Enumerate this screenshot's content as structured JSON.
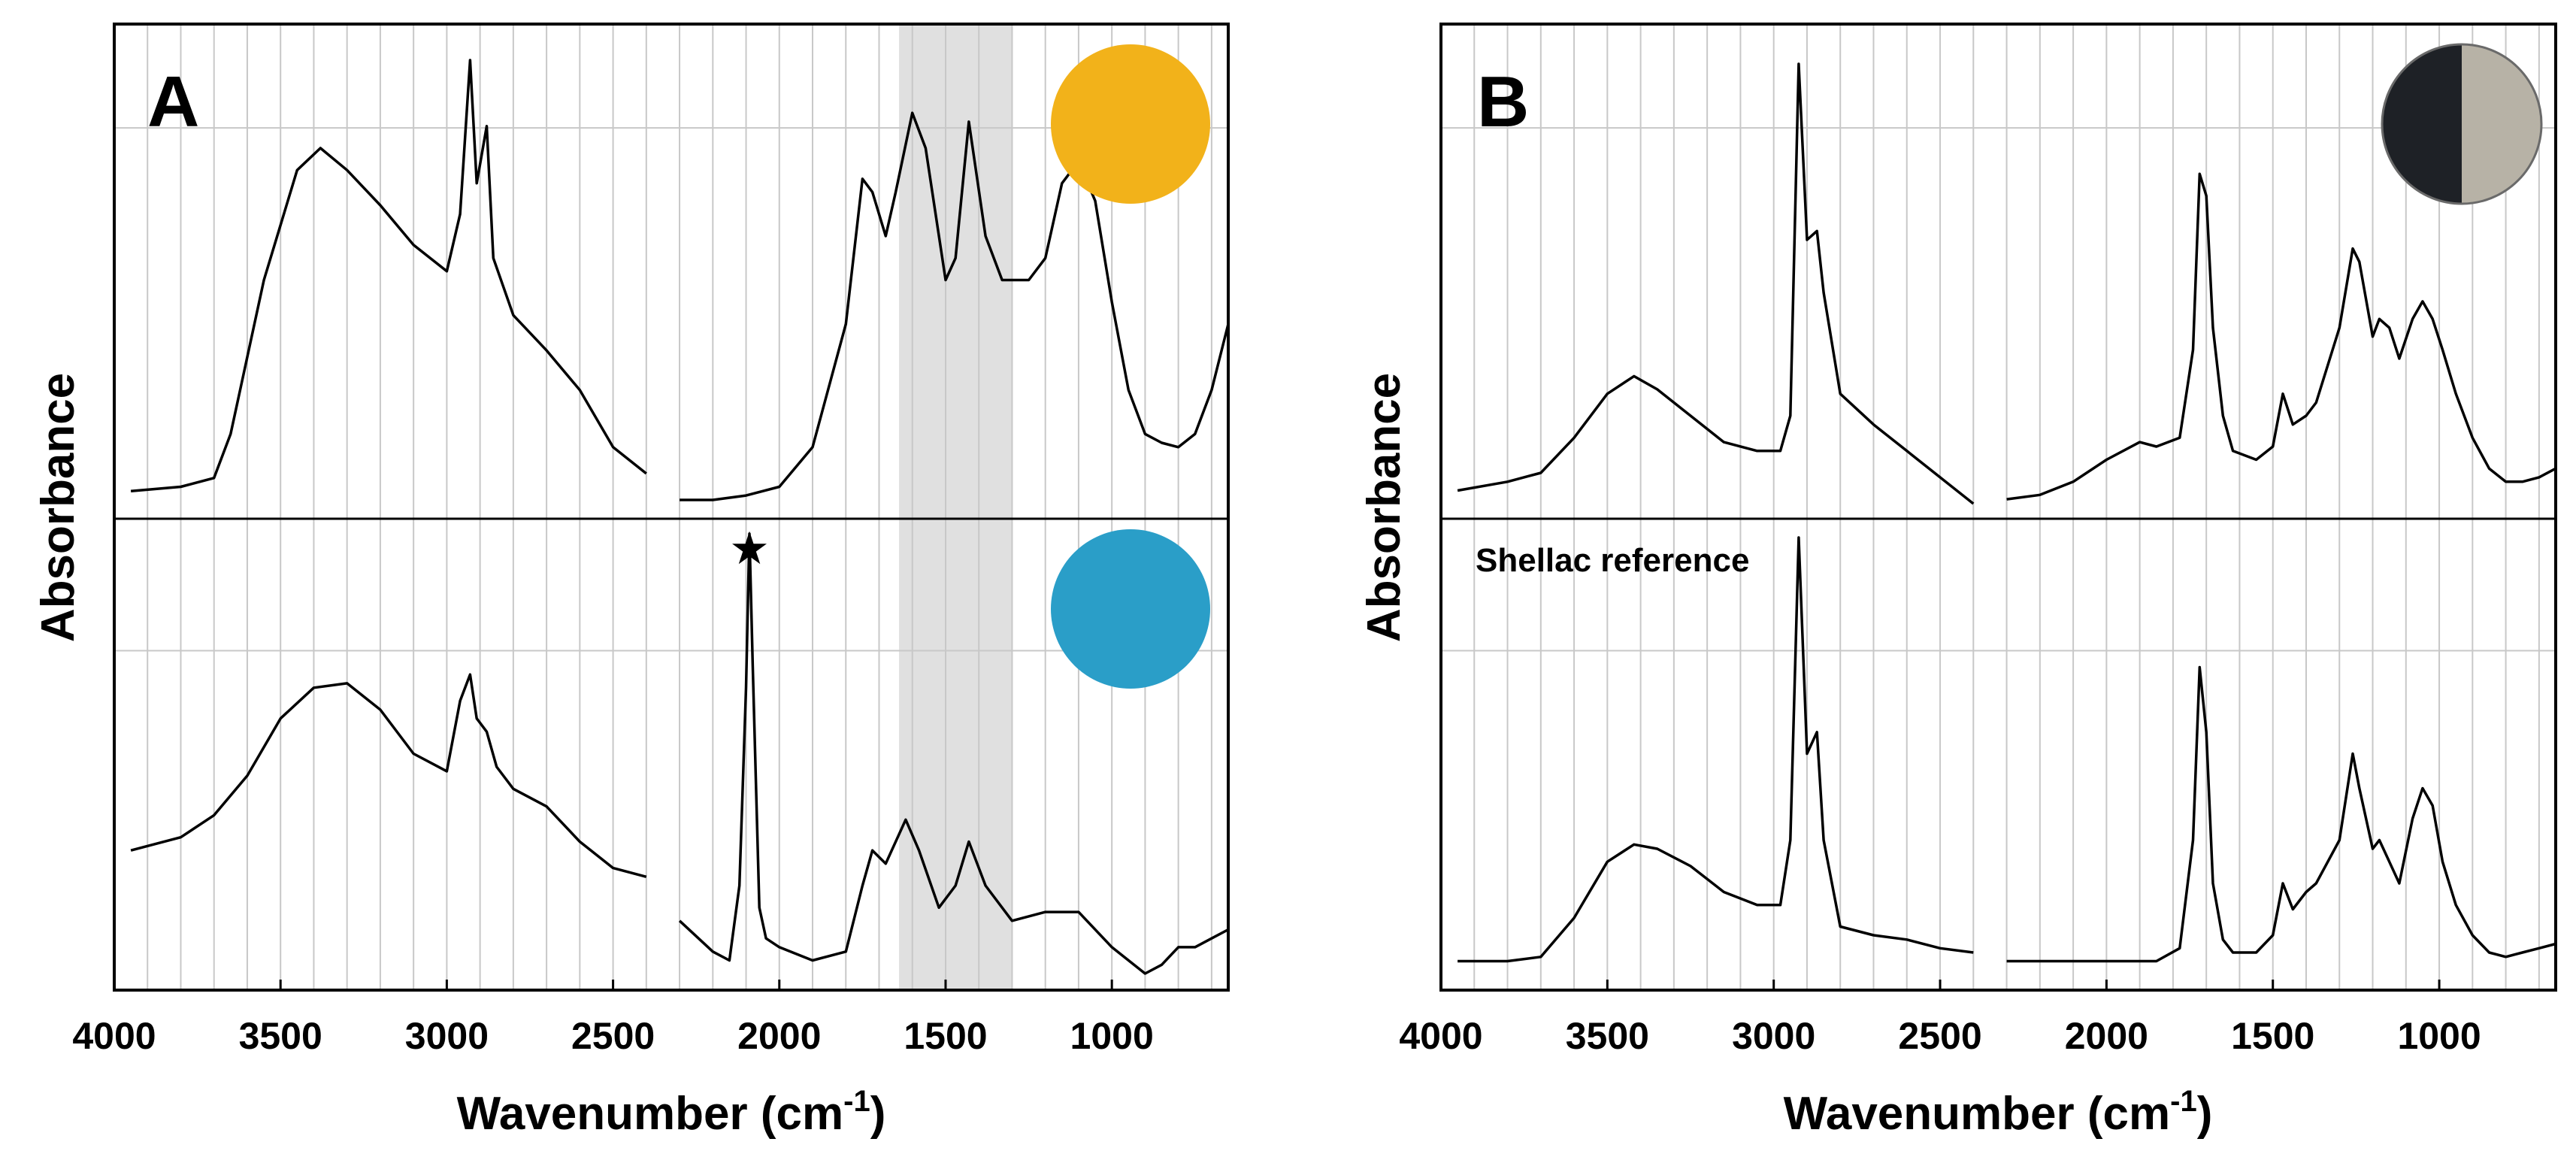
{
  "chart_data": [
    {
      "type": "line",
      "panel": "A",
      "xlabel": "Wavenumber (cm",
      "xlabel_sup": "-1",
      "xlabel_end": ")",
      "ylabel": "Absorbance",
      "xlim": [
        4000,
        650
      ],
      "xticks": [
        4000,
        3500,
        3000,
        2500,
        2000,
        1500,
        1000
      ],
      "gap": [
        2400,
        2300
      ],
      "highlight_band": [
        1640,
        1300
      ],
      "sample_colors": [
        "#f2b21a",
        "#2a9ec8"
      ],
      "marker": {
        "symbol": "★",
        "x": 2090
      },
      "series": [
        {
          "name": "yellow sample",
          "x": [
            3950,
            3800,
            3700,
            3650,
            3550,
            3450,
            3380,
            3300,
            3200,
            3100,
            3000,
            2960,
            2930,
            2910,
            2880,
            2860,
            2800,
            2700,
            2600,
            2500,
            2400,
            2300,
            2200,
            2100,
            2000,
            1900,
            1800,
            1750,
            1720,
            1680,
            1650,
            1600,
            1560,
            1500,
            1470,
            1430,
            1380,
            1330,
            1250,
            1200,
            1150,
            1100,
            1050,
            1000,
            950,
            900,
            850,
            800,
            750,
            700,
            650
          ],
          "y": [
            0.02,
            0.03,
            0.05,
            0.15,
            0.5,
            0.75,
            0.8,
            0.75,
            0.67,
            0.58,
            0.52,
            0.65,
            1.0,
            0.72,
            0.85,
            0.55,
            0.42,
            0.34,
            0.25,
            0.12,
            0.06,
            0.0,
            0.0,
            0.01,
            0.03,
            0.12,
            0.4,
            0.73,
            0.7,
            0.6,
            0.7,
            0.88,
            0.8,
            0.5,
            0.55,
            0.86,
            0.6,
            0.5,
            0.5,
            0.55,
            0.72,
            0.77,
            0.68,
            0.45,
            0.25,
            0.15,
            0.13,
            0.12,
            0.15,
            0.25,
            0.4
          ]
        },
        {
          "name": "blue sample",
          "x": [
            3950,
            3800,
            3700,
            3600,
            3500,
            3400,
            3300,
            3200,
            3100,
            3000,
            2960,
            2930,
            2910,
            2880,
            2850,
            2800,
            2700,
            2600,
            2500,
            2400,
            2300,
            2200,
            2150,
            2120,
            2100,
            2090,
            2080,
            2060,
            2040,
            2000,
            1900,
            1800,
            1750,
            1720,
            1680,
            1620,
            1580,
            1520,
            1470,
            1430,
            1380,
            1300,
            1200,
            1100,
            1000,
            900,
            850,
            800,
            750,
            700,
            650
          ],
          "y": [
            0.28,
            0.31,
            0.36,
            0.45,
            0.58,
            0.65,
            0.66,
            0.6,
            0.5,
            0.46,
            0.62,
            0.68,
            0.58,
            0.55,
            0.47,
            0.42,
            0.38,
            0.3,
            0.24,
            0.22,
            0.12,
            0.05,
            0.03,
            0.2,
            0.65,
            1.0,
            0.7,
            0.15,
            0.08,
            0.06,
            0.03,
            0.05,
            0.2,
            0.28,
            0.25,
            0.35,
            0.28,
            0.15,
            0.2,
            0.3,
            0.2,
            0.12,
            0.14,
            0.14,
            0.06,
            0.0,
            0.02,
            0.06,
            0.06,
            0.08,
            0.1
          ]
        }
      ]
    },
    {
      "type": "line",
      "panel": "B",
      "xlabel": "Wavenumber (cm",
      "xlabel_sup": "-1",
      "xlabel_end": ")",
      "ylabel": "Absorbance",
      "xlim": [
        4000,
        650
      ],
      "xticks": [
        4000,
        3500,
        3000,
        2500,
        2000,
        1500,
        1000
      ],
      "gap": [
        2400,
        2300
      ],
      "reference_label": "Shellac reference",
      "sample_colors": [
        "#1e2126",
        "#b7b2a6"
      ],
      "series": [
        {
          "name": "black sample",
          "x": [
            3950,
            3800,
            3700,
            3600,
            3500,
            3420,
            3350,
            3250,
            3150,
            3050,
            2980,
            2950,
            2925,
            2900,
            2870,
            2850,
            2800,
            2700,
            2600,
            2500,
            2400,
            2300,
            2200,
            2100,
            2000,
            1900,
            1850,
            1780,
            1740,
            1720,
            1700,
            1680,
            1650,
            1620,
            1550,
            1500,
            1470,
            1440,
            1400,
            1370,
            1300,
            1260,
            1240,
            1200,
            1180,
            1150,
            1120,
            1080,
            1050,
            1020,
            990,
            950,
            900,
            850,
            800,
            750,
            700,
            650
          ],
          "y": [
            0.03,
            0.05,
            0.07,
            0.15,
            0.25,
            0.29,
            0.26,
            0.2,
            0.14,
            0.12,
            0.12,
            0.2,
            1.0,
            0.6,
            0.62,
            0.48,
            0.25,
            0.18,
            0.12,
            0.06,
            0.0,
            0.01,
            0.02,
            0.05,
            0.1,
            0.14,
            0.13,
            0.15,
            0.35,
            0.75,
            0.7,
            0.4,
            0.2,
            0.12,
            0.1,
            0.13,
            0.25,
            0.18,
            0.2,
            0.23,
            0.4,
            0.58,
            0.55,
            0.38,
            0.42,
            0.4,
            0.33,
            0.42,
            0.46,
            0.42,
            0.35,
            0.25,
            0.15,
            0.08,
            0.05,
            0.05,
            0.06,
            0.08
          ]
        },
        {
          "name": "Shellac reference",
          "x": [
            3950,
            3800,
            3700,
            3600,
            3500,
            3420,
            3350,
            3250,
            3150,
            3050,
            2980,
            2950,
            2925,
            2900,
            2870,
            2850,
            2800,
            2700,
            2600,
            2500,
            2400,
            2300,
            2200,
            2100,
            2000,
            1900,
            1850,
            1780,
            1740,
            1720,
            1700,
            1680,
            1650,
            1620,
            1550,
            1500,
            1470,
            1440,
            1400,
            1370,
            1300,
            1260,
            1240,
            1200,
            1180,
            1150,
            1120,
            1080,
            1050,
            1020,
            990,
            950,
            900,
            850,
            800,
            750,
            700,
            650
          ],
          "y": [
            0.02,
            0.02,
            0.03,
            0.12,
            0.25,
            0.29,
            0.28,
            0.24,
            0.18,
            0.15,
            0.15,
            0.3,
            1.0,
            0.5,
            0.55,
            0.3,
            0.1,
            0.08,
            0.07,
            0.05,
            0.04,
            0.02,
            0.02,
            0.02,
            0.02,
            0.02,
            0.02,
            0.05,
            0.3,
            0.7,
            0.55,
            0.2,
            0.07,
            0.04,
            0.04,
            0.08,
            0.2,
            0.14,
            0.18,
            0.2,
            0.3,
            0.5,
            0.42,
            0.28,
            0.3,
            0.25,
            0.2,
            0.35,
            0.42,
            0.38,
            0.25,
            0.15,
            0.08,
            0.04,
            0.03,
            0.04,
            0.05,
            0.06
          ]
        }
      ]
    }
  ]
}
